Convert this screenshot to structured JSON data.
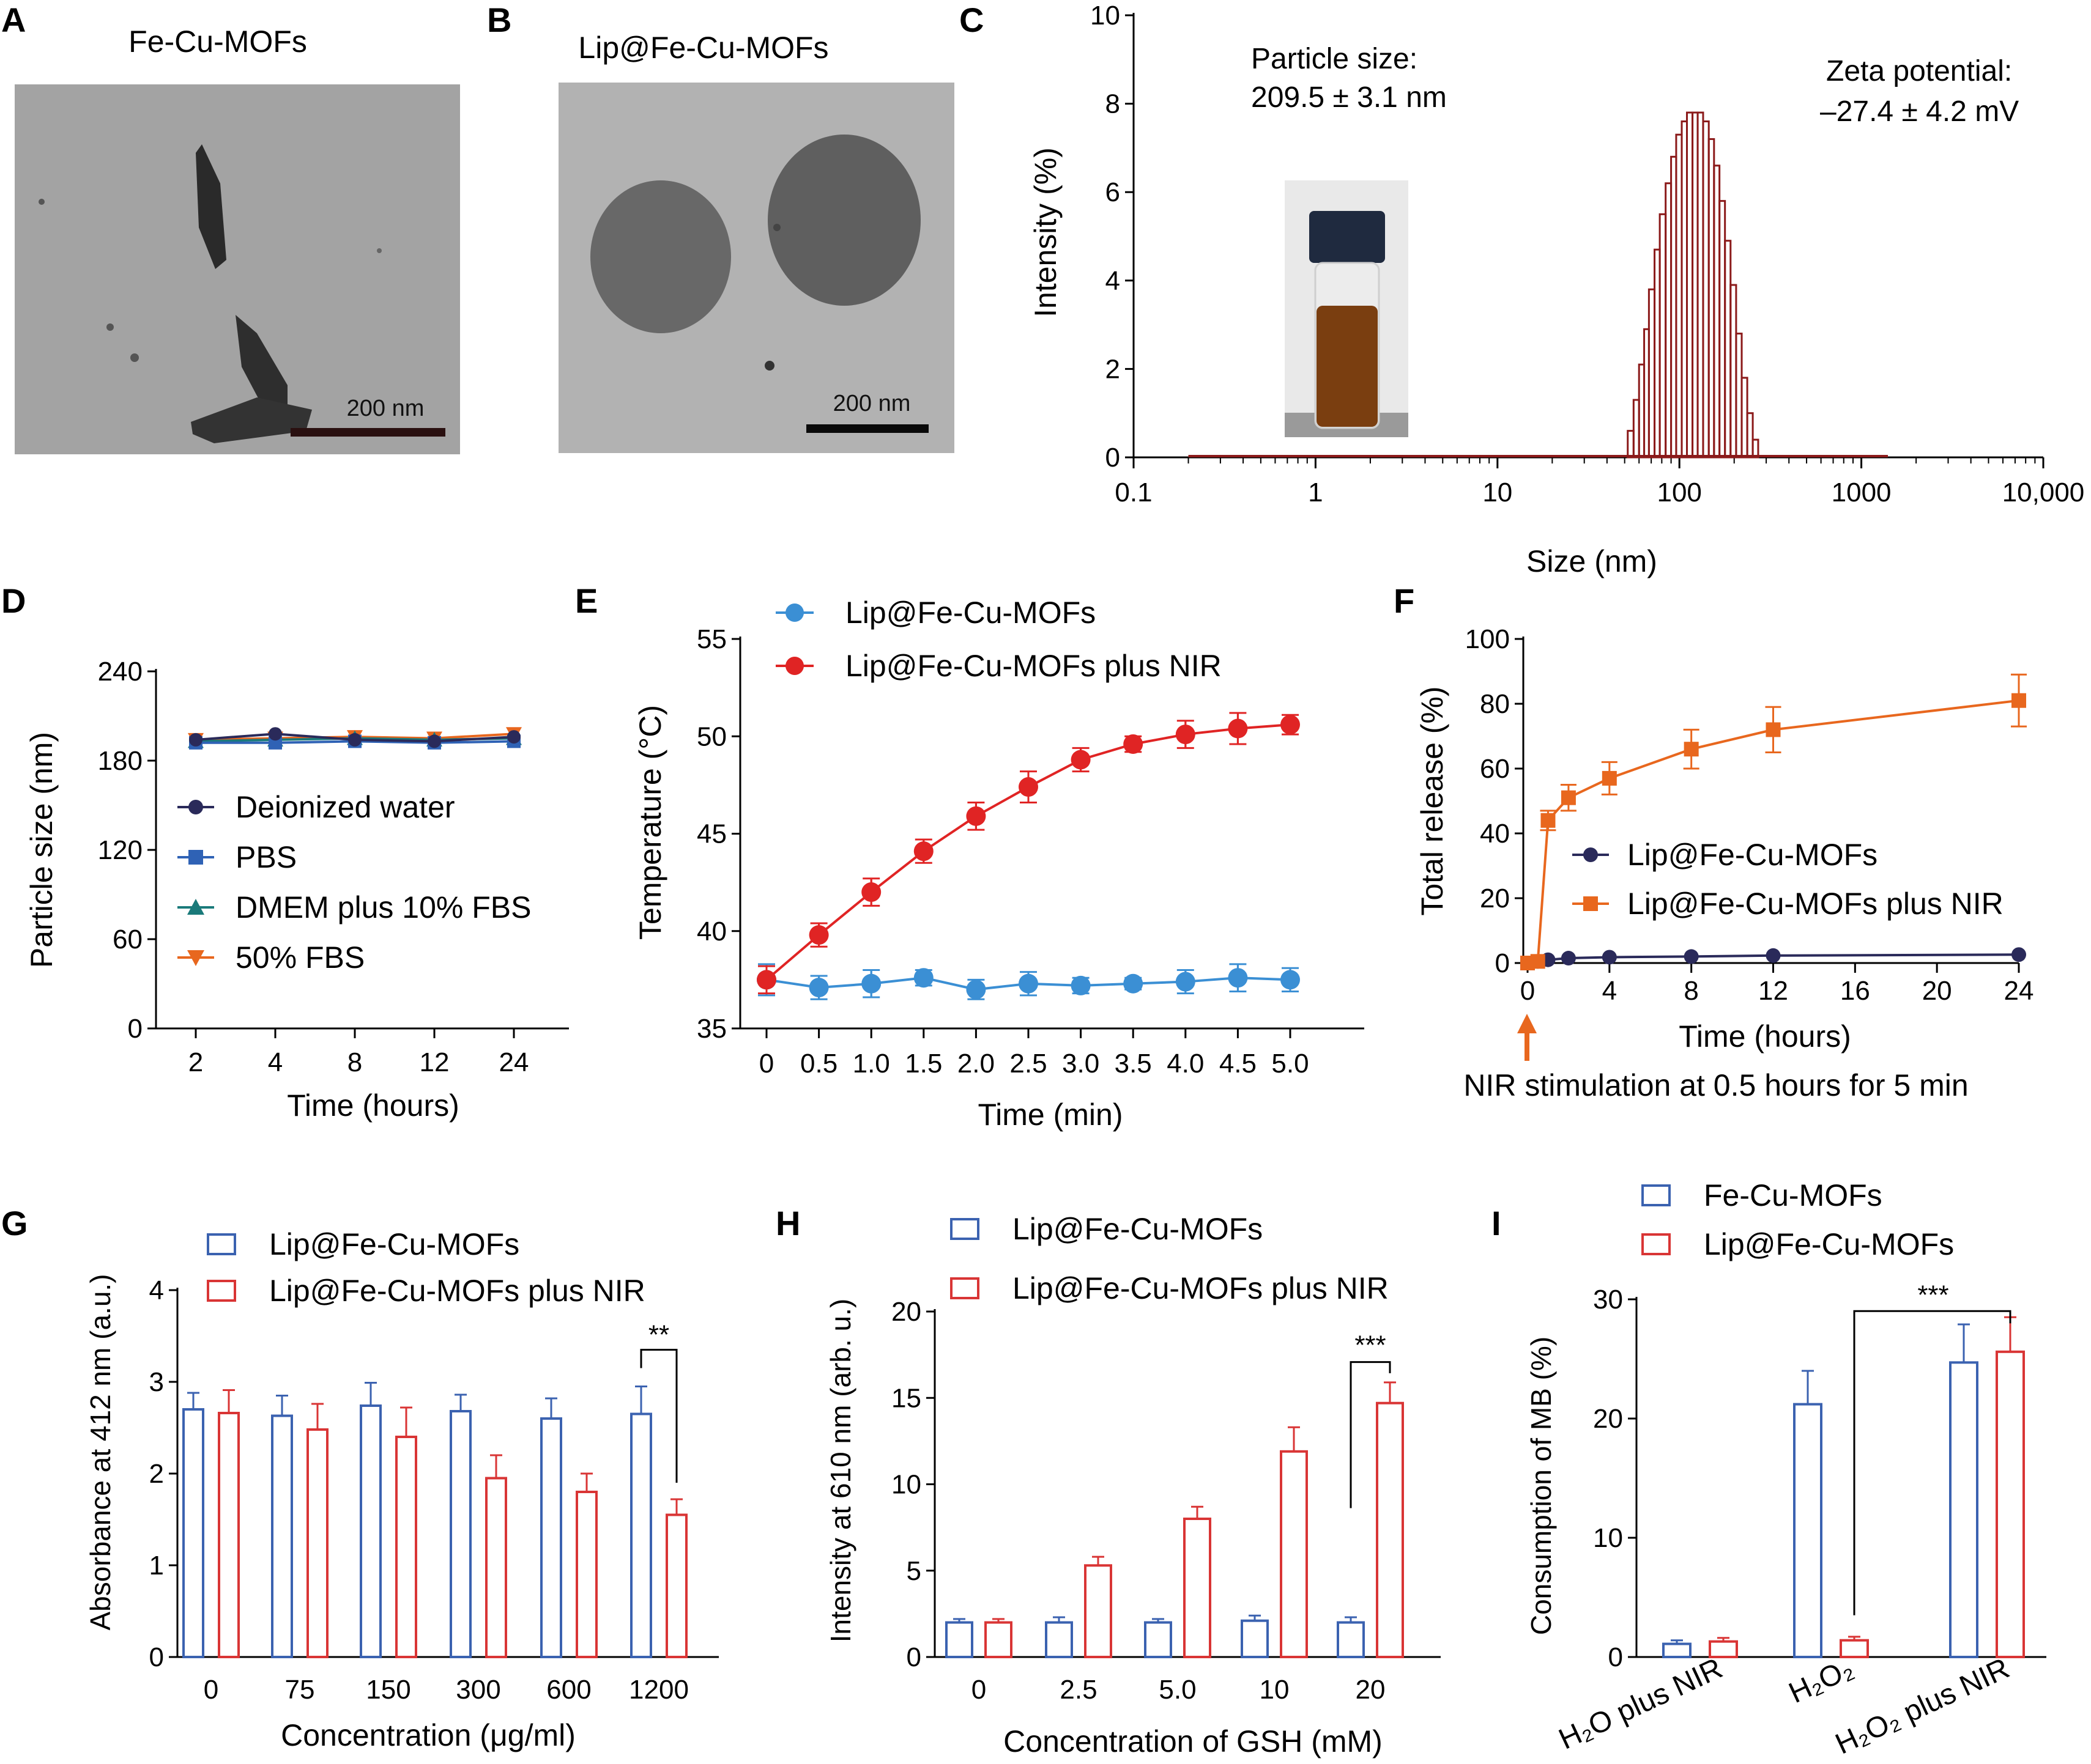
{
  "panels": {
    "A": {
      "letter": "A",
      "title": "Fe-Cu-MOFs",
      "scale_bar": "200 nm"
    },
    "B": {
      "letter": "B",
      "title": "Lip@Fe-Cu-MOFs",
      "scale_bar": "200 nm"
    },
    "C": {
      "letter": "C"
    },
    "D": {
      "letter": "D"
    },
    "E": {
      "letter": "E"
    },
    "F": {
      "letter": "F"
    },
    "G": {
      "letter": "G"
    },
    "H": {
      "letter": "H"
    },
    "I": {
      "letter": "I"
    }
  },
  "colors": {
    "dark_red": "#8b1a1a",
    "navy": "#2a2a5a",
    "blue": "#2f62b5",
    "teal": "#1a7a7a",
    "orange": "#e8671e",
    "red": "#e02424",
    "light_blue": "#3b8fd4",
    "bar_red": "#d93535",
    "bar_blue": "#3b62b0",
    "em_gray": "#9a9a9a"
  },
  "chart_data": [
    {
      "id": "C",
      "type": "bar",
      "xlabel": "Size (nm)",
      "ylabel": "Intensity (%)",
      "xscale": "log",
      "xlim": [
        0.1,
        10000
      ],
      "ylim": [
        0,
        10
      ],
      "xticks": [
        0.1,
        1,
        10,
        100,
        1000,
        10000
      ],
      "xtick_labels": [
        "0.1",
        "1",
        "10",
        "100",
        "1000",
        "10,000"
      ],
      "yticks": [
        0,
        2,
        4,
        6,
        8,
        10
      ],
      "annotations": {
        "size_label": "Particle size:",
        "size_value": "209.5 ± 3.1 nm",
        "zeta_label": "Zeta potential:",
        "zeta_value": "–27.4 ± 4.2 mV"
      },
      "baseline_range": [
        0.2,
        1400
      ],
      "size": [
        52,
        56,
        60,
        64,
        68,
        73,
        78,
        84,
        90,
        96,
        103,
        110,
        118,
        126,
        135,
        145,
        155,
        166,
        178,
        191,
        205,
        220,
        236,
        253,
        271
      ],
      "intensity": [
        0.0,
        0.6,
        1.3,
        2.1,
        2.9,
        3.8,
        4.7,
        5.5,
        6.2,
        6.8,
        7.3,
        7.6,
        7.8,
        7.8,
        7.6,
        7.2,
        6.6,
        5.8,
        4.9,
        3.9,
        2.8,
        1.8,
        1.0,
        0.4,
        0.0
      ]
    },
    {
      "id": "D",
      "type": "line",
      "xlabel": "Time (hours)",
      "ylabel": "Particle size (nm)",
      "categories": [
        "2",
        "4",
        "8",
        "12",
        "24"
      ],
      "ylim": [
        0,
        240
      ],
      "yticks": [
        0,
        60,
        120,
        180,
        240
      ],
      "series": [
        {
          "name": "Deionized water",
          "values": [
            194,
            198,
            194,
            193,
            196
          ],
          "color": "#2a2a5a",
          "marker": "circle"
        },
        {
          "name": "PBS",
          "values": [
            192,
            192,
            193,
            192,
            193
          ],
          "color": "#2f62b5",
          "marker": "square"
        },
        {
          "name": "DMEM plus 10% FBS",
          "values": [
            193,
            194,
            195,
            194,
            195
          ],
          "color": "#1a7a7a",
          "marker": "triangle-up"
        },
        {
          "name": "50% FBS",
          "values": [
            194,
            195,
            196,
            195,
            198
          ],
          "color": "#e8671e",
          "marker": "triangle-down"
        }
      ]
    },
    {
      "id": "E",
      "type": "line",
      "xlabel": "Time (min)",
      "ylabel": "Temperature (°C)",
      "x": [
        0,
        0.5,
        1.0,
        1.5,
        2.0,
        2.5,
        3.0,
        3.5,
        4.0,
        4.5,
        5.0
      ],
      "xtick_labels": [
        "0",
        "0.5",
        "1.0",
        "1.5",
        "2.0",
        "2.5",
        "3.0",
        "3.5",
        "4.0",
        "4.5",
        "5.0"
      ],
      "ylim": [
        35,
        55
      ],
      "yticks": [
        35,
        40,
        45,
        50,
        55
      ],
      "series": [
        {
          "name": "Lip@Fe-Cu-MOFs",
          "color": "#3b8fd4",
          "values": [
            37.5,
            37.1,
            37.3,
            37.6,
            37.0,
            37.3,
            37.2,
            37.3,
            37.4,
            37.6,
            37.5
          ],
          "errors": [
            0.8,
            0.6,
            0.7,
            0.4,
            0.5,
            0.6,
            0.4,
            0.3,
            0.6,
            0.7,
            0.6
          ]
        },
        {
          "name": "Lip@Fe-Cu-MOFs plus NIR",
          "color": "#e02424",
          "values": [
            37.5,
            39.8,
            42.0,
            44.1,
            45.9,
            47.4,
            48.8,
            49.6,
            50.1,
            50.4,
            50.6
          ],
          "errors": [
            0.7,
            0.6,
            0.7,
            0.6,
            0.7,
            0.8,
            0.6,
            0.4,
            0.7,
            0.8,
            0.5
          ]
        }
      ]
    },
    {
      "id": "F",
      "type": "line",
      "xlabel": "Time (hours)",
      "ylabel": "Total release (%)",
      "xlim": [
        0,
        24
      ],
      "xticks": [
        0,
        4,
        8,
        12,
        16,
        20,
        24
      ],
      "ylim": [
        0,
        100
      ],
      "yticks": [
        0,
        20,
        40,
        60,
        80,
        100
      ],
      "annotation": "NIR stimulation at 0.5 hours  for 5 min",
      "series": [
        {
          "name": "Lip@Fe-Cu-MOFs",
          "color": "#2a2a5a",
          "x": [
            0,
            0.5,
            1,
            2,
            4,
            8,
            12,
            24
          ],
          "values": [
            0,
            0.5,
            1.0,
            1.5,
            1.8,
            2.0,
            2.3,
            2.6
          ],
          "errors": [
            0,
            0,
            0,
            0,
            0,
            0,
            0,
            0
          ]
        },
        {
          "name": "Lip@Fe-Cu-MOFs plus NIR",
          "color": "#e8671e",
          "x": [
            0,
            0.5,
            1,
            2,
            4,
            8,
            12,
            24
          ],
          "values": [
            0,
            0.5,
            44,
            51,
            57,
            66,
            72,
            81
          ],
          "errors": [
            0,
            0,
            3,
            4,
            5,
            6,
            7,
            8
          ]
        }
      ]
    },
    {
      "id": "G",
      "type": "bar",
      "xlabel": "Concentration (μg/ml)",
      "ylabel": "Absorbance at 412 nm (a.u.)",
      "categories": [
        "0",
        "75",
        "150",
        "300",
        "600",
        "1200"
      ],
      "ylim": [
        0,
        4
      ],
      "yticks": [
        0,
        1,
        2,
        3,
        4
      ],
      "significance": {
        "label": "**",
        "category": "1200"
      },
      "series": [
        {
          "name": "Lip@Fe-Cu-MOFs",
          "color": "#3b62b0",
          "values": [
            2.7,
            2.63,
            2.74,
            2.68,
            2.6,
            2.65
          ],
          "errors": [
            0.18,
            0.22,
            0.25,
            0.18,
            0.22,
            0.3
          ]
        },
        {
          "name": "Lip@Fe-Cu-MOFs plus NIR",
          "color": "#d93535",
          "values": [
            2.66,
            2.48,
            2.4,
            1.95,
            1.8,
            1.55
          ],
          "errors": [
            0.25,
            0.28,
            0.32,
            0.25,
            0.2,
            0.17
          ]
        }
      ]
    },
    {
      "id": "H",
      "type": "bar",
      "xlabel": "Concentration of GSH (mM)",
      "ylabel": "Intensity at 610 nm (arb. u.)",
      "categories": [
        "0",
        "2.5",
        "5.0",
        "10",
        "20"
      ],
      "ylim": [
        0,
        20
      ],
      "yticks": [
        0,
        5,
        10,
        15,
        20
      ],
      "significance": {
        "label": "***",
        "category": "20"
      },
      "series": [
        {
          "name": "Lip@Fe-Cu-MOFs",
          "color": "#3b62b0",
          "values": [
            2.0,
            2.0,
            2.0,
            2.1,
            2.0
          ],
          "errors": [
            0.2,
            0.3,
            0.2,
            0.3,
            0.3
          ]
        },
        {
          "name": "Lip@Fe-Cu-MOFs plus NIR",
          "color": "#d93535",
          "values": [
            2.0,
            5.3,
            8.0,
            11.9,
            14.7
          ],
          "errors": [
            0.2,
            0.5,
            0.7,
            1.4,
            1.2
          ]
        }
      ]
    },
    {
      "id": "I",
      "type": "bar",
      "xlabel": "",
      "ylabel": "Consumption of MB (%)",
      "categories": [
        "H₂O plus NIR",
        "H₂O₂",
        "H₂O₂ plus NIR"
      ],
      "ylim": [
        0,
        30
      ],
      "yticks": [
        0,
        10,
        20,
        30
      ],
      "significance": {
        "label": "***"
      },
      "series": [
        {
          "name": "Fe-Cu-MOFs",
          "color": "#3b62b0",
          "values": [
            1.1,
            21.2,
            24.7
          ],
          "errors": [
            0.3,
            2.8,
            3.2
          ]
        },
        {
          "name": "Lip@Fe-Cu-MOFs",
          "color": "#d93535",
          "values": [
            1.3,
            1.4,
            25.6
          ],
          "errors": [
            0.3,
            0.3,
            2.9
          ]
        }
      ]
    }
  ]
}
